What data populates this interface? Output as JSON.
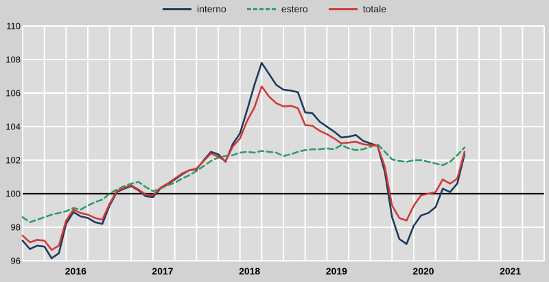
{
  "legend": {
    "items": [
      {
        "label": "interno",
        "color": "#1b3c5e",
        "line_style": "solid"
      },
      {
        "label": "estero",
        "color": "#2e9c6a",
        "line_style": "dashed"
      },
      {
        "label": "totale",
        "color": "#d03a3a",
        "line_style": "solid"
      }
    ]
  },
  "colors": {
    "background": "#d2d2d2",
    "plot_background": "#dcdcdc",
    "gridline": "#ffffff",
    "baseline": "#000000",
    "interno": "#1b3c5e",
    "estero": "#2e9c6a",
    "totale": "#d03a3a"
  },
  "chart_data": {
    "type": "line",
    "title": "",
    "xlabel": "",
    "ylabel": "",
    "ylim": [
      96,
      110
    ],
    "y_ticks": [
      96,
      98,
      100,
      102,
      104,
      106,
      108,
      110
    ],
    "x_tick_labels": [
      "2016",
      "2017",
      "2018",
      "2019",
      "2020",
      "2021"
    ],
    "x_axis": {
      "start_month": "2016-01",
      "total_months": 72,
      "vertical_grid_divisions": 24
    },
    "baseline_value": 100,
    "grid": true,
    "legend_position": "top-center",
    "x_monthly_start": "2016-01",
    "x_monthly_end": "2021-02",
    "series": [
      {
        "name": "interno",
        "color": "#1b3c5e",
        "dash": null,
        "values": [
          97.2,
          96.7,
          96.9,
          96.85,
          96.15,
          96.45,
          98.2,
          98.9,
          98.65,
          98.55,
          98.3,
          98.2,
          99.3,
          100.1,
          100.3,
          100.45,
          100.2,
          99.85,
          99.8,
          100.3,
          100.55,
          100.85,
          101.15,
          101.4,
          101.45,
          102.0,
          102.5,
          102.35,
          101.9,
          102.95,
          103.6,
          105.0,
          106.5,
          107.8,
          107.15,
          106.5,
          106.2,
          106.15,
          106.05,
          104.85,
          104.8,
          104.3,
          104.0,
          103.7,
          103.35,
          103.4,
          103.5,
          103.15,
          103.0,
          102.85,
          101.3,
          98.6,
          97.3,
          97.0,
          98.1,
          98.7,
          98.85,
          99.2,
          100.3,
          100.1,
          100.6,
          102.35
        ]
      },
      {
        "name": "estero",
        "color": "#2e9c6a",
        "dash": "8,5",
        "values": [
          98.6,
          98.3,
          98.45,
          98.6,
          98.75,
          98.85,
          98.95,
          99.15,
          99.05,
          99.3,
          99.5,
          99.65,
          100.0,
          100.25,
          100.45,
          100.6,
          100.7,
          100.4,
          100.15,
          100.3,
          100.5,
          100.65,
          100.9,
          101.1,
          101.35,
          101.65,
          101.95,
          102.15,
          102.25,
          102.3,
          102.45,
          102.5,
          102.45,
          102.55,
          102.5,
          102.45,
          102.25,
          102.35,
          102.5,
          102.6,
          102.65,
          102.65,
          102.7,
          102.65,
          102.9,
          102.7,
          102.6,
          102.65,
          102.8,
          102.95,
          102.5,
          102.05,
          101.95,
          101.9,
          102.0,
          102.0,
          101.9,
          101.8,
          101.7,
          101.9,
          102.3,
          102.75
        ]
      },
      {
        "name": "totale",
        "color": "#d03a3a",
        "dash": null,
        "values": [
          97.5,
          97.1,
          97.25,
          97.2,
          96.65,
          96.9,
          98.4,
          99.05,
          98.85,
          98.75,
          98.55,
          98.45,
          99.4,
          100.15,
          100.35,
          100.5,
          100.25,
          99.95,
          99.9,
          100.35,
          100.6,
          100.9,
          101.2,
          101.4,
          101.5,
          101.95,
          102.4,
          102.2,
          101.95,
          102.8,
          103.3,
          104.35,
          105.15,
          106.4,
          105.8,
          105.4,
          105.2,
          105.25,
          105.1,
          104.1,
          104.05,
          103.75,
          103.55,
          103.3,
          103.0,
          103.05,
          103.1,
          102.95,
          102.9,
          102.85,
          101.6,
          99.3,
          98.55,
          98.4,
          99.3,
          99.9,
          100.0,
          100.1,
          100.85,
          100.6,
          100.9,
          102.5
        ]
      }
    ]
  }
}
